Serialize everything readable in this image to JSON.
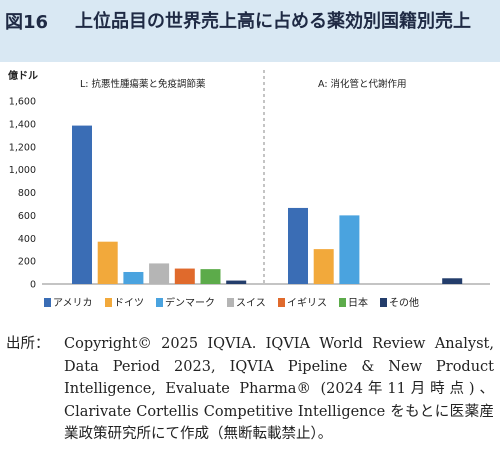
{
  "header": {
    "figure_label": "図16",
    "title": "上位品目の世界売上高に占める薬効別国籍別売上"
  },
  "source": {
    "label": "出所：",
    "text": "Copyright© 2025 IQVIA. IQVIA World Review Analyst, Data Period 2023, IQVIA Pipeline & New Product Intelligence, Evaluate Pharma® (2024年11月時点)、Clarivate Cortellis Competitive Intelligence をもとに医薬産業政策研究所にて作成（無断転載禁止）。"
  },
  "chart_data": {
    "type": "bar",
    "ylabel": "億ドル",
    "ylim": [
      0,
      1600
    ],
    "yticks": [
      "0",
      "200",
      "400",
      "600",
      "800",
      "1,000",
      "1,200",
      "1,400",
      "1,600"
    ],
    "grid": false,
    "legend_position": "bottom",
    "panels": [
      {
        "label": "L: 抗悪性腫瘍薬と免疫調節薬",
        "series": [
          "アメリカ",
          "ドイツ",
          "デンマーク",
          "スイス",
          "イギリス",
          "日本",
          "その他"
        ],
        "values": [
          1385,
          370,
          105,
          180,
          135,
          130,
          30
        ]
      },
      {
        "label": "A: 消化管と代謝作用",
        "series": [
          "アメリカ",
          "ドイツ",
          "デンマーク",
          "スイス",
          "イギリス",
          "日本",
          "その他"
        ],
        "values": [
          665,
          305,
          600,
          0,
          0,
          0,
          50
        ]
      }
    ],
    "legend": [
      {
        "name": "アメリカ",
        "color": "#3a6db5"
      },
      {
        "name": "ドイツ",
        "color": "#f2a93b"
      },
      {
        "name": "デンマーク",
        "color": "#4aa3df"
      },
      {
        "name": "スイス",
        "color": "#b5b5b5"
      },
      {
        "name": "イギリス",
        "color": "#e06a2c"
      },
      {
        "name": "日本",
        "color": "#5cab4a"
      },
      {
        "name": "その他",
        "color": "#233d6b"
      }
    ]
  }
}
